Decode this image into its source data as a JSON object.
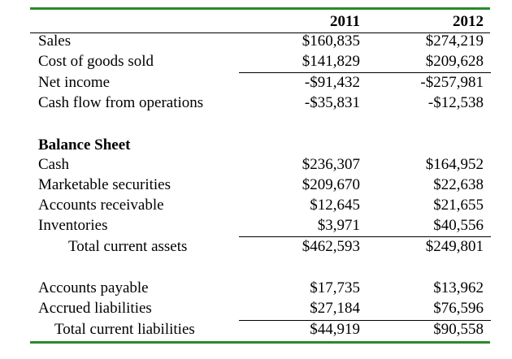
{
  "table": {
    "years": [
      "2011",
      "2012"
    ],
    "income_rows": [
      {
        "label": "Sales",
        "y2011": "$160,835",
        "y2012": "$274,219"
      },
      {
        "label": "Cost of goods sold",
        "y2011": "$141,829",
        "y2012": "$209,628"
      },
      {
        "label": "Net income",
        "y2011": "-$91,432",
        "y2012": "-$257,981"
      },
      {
        "label": "Cash flow from operations",
        "y2011": "-$35,831",
        "y2012": "-$12,538"
      }
    ],
    "balance_sheet_heading": "Balance Sheet",
    "asset_rows": [
      {
        "label": "Cash",
        "y2011": "$236,307",
        "y2012": "$164,952"
      },
      {
        "label": "Marketable securities",
        "y2011": "$209,670",
        "y2012": "$22,638"
      },
      {
        "label": "Accounts receivable",
        "y2011": "$12,645",
        "y2012": "$21,655"
      },
      {
        "label": "Inventories",
        "y2011": "$3,971",
        "y2012": "$40,556"
      }
    ],
    "total_current_assets": {
      "label": "Total current assets",
      "y2011": "$462,593",
      "y2012": "$249,801"
    },
    "liability_rows": [
      {
        "label": "Accounts payable",
        "y2011": "$17,735",
        "y2012": "$13,962"
      },
      {
        "label": "Accrued liabilities",
        "y2011": "$27,184",
        "y2012": "$76,596"
      }
    ],
    "total_current_liabilities": {
      "label": "Total current liabilities",
      "y2011": "$44,919",
      "y2012": "$90,558"
    }
  },
  "colors": {
    "rule_green": "#2a8a2a",
    "text": "#000000",
    "background": "#ffffff"
  }
}
